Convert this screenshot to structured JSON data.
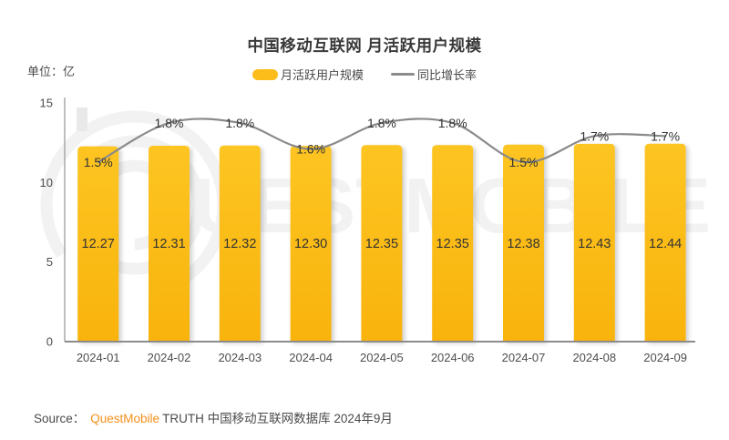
{
  "title": "中国移动互联网 月活跃用户规模",
  "unit_label": "单位：亿",
  "legend": {
    "bar_label": "月活跃用户规模",
    "line_label": "同比增长率"
  },
  "source": {
    "prefix": "Source：",
    "brand": "QuestMobile",
    "rest": "TRUTH 中国移动互联网数据库 2024年9月"
  },
  "watermark_text": "UESTMOBILE",
  "colors": {
    "bar_top": "#fdc522",
    "bar_bottom": "#f9b30c",
    "bar_legend": "#fcbd1a",
    "line": "#8a8a8a",
    "axis": "#8c8c8c",
    "axis_y": "#a8a8a8",
    "label_dark": "#333333",
    "tick_text": "#4d4d4d",
    "brand_orange": "#f39019",
    "watermark": "#f2f2f2"
  },
  "chart_data": {
    "type": "bar",
    "title": "中国移动互联网 月活跃用户规模",
    "ylabel": "单位：亿",
    "categories": [
      "2024-01",
      "2024-02",
      "2024-03",
      "2024-04",
      "2024-05",
      "2024-06",
      "2024-07",
      "2024-08",
      "2024-09"
    ],
    "series": [
      {
        "name": "月活跃用户规模",
        "type": "bar",
        "unit": "亿",
        "values": [
          12.27,
          12.31,
          12.32,
          12.3,
          12.35,
          12.35,
          12.38,
          12.43,
          12.44
        ]
      },
      {
        "name": "同比增长率",
        "type": "line",
        "unit": "%",
        "values": [
          1.5,
          1.8,
          1.8,
          1.6,
          1.8,
          1.8,
          1.5,
          1.7,
          1.7
        ],
        "labels": [
          "1.5%",
          "1.8%",
          "1.8%",
          "1.6%",
          "1.8%",
          "1.8%",
          "1.5%",
          "1.7%",
          "1.7%"
        ]
      }
    ],
    "yticks": [
      0,
      5,
      10,
      15
    ],
    "ylim": [
      0,
      15
    ],
    "grid": false,
    "legend_position": "top"
  }
}
